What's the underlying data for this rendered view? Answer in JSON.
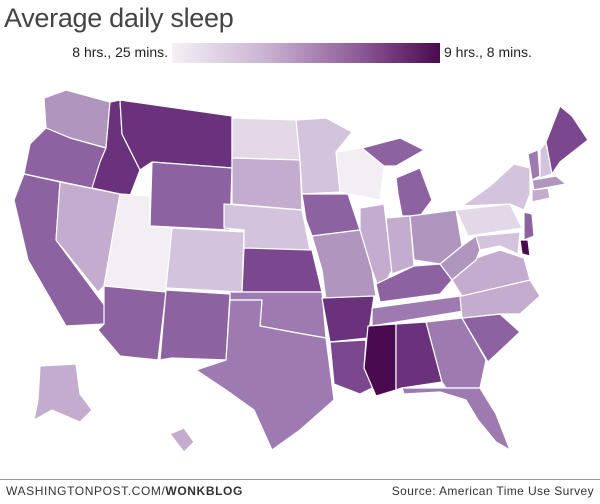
{
  "title": "Average daily sleep",
  "legend": {
    "min_label": "8 hrs., 25 mins.",
    "max_label": "9 hrs., 8 mins.",
    "min_color": "#f4f1f6",
    "max_color": "#4a0a4f"
  },
  "footer": {
    "credit_prefix": "WASHINGTONPOST.COM/",
    "credit_brand": "WONKBLOG",
    "source": "Source: American Time Use Survey"
  },
  "shades": {
    "0": "#f2eef4",
    "1": "#e3d8e8",
    "2": "#d4c3dc",
    "3": "#c3acce",
    "4": "#b096bf",
    "5": "#9d7bb0",
    "6": "#8c62a0",
    "7": "#7b4890",
    "8": "#6a317d",
    "9": "#4a0a4f"
  },
  "states": {
    "WA": 4,
    "OR": 6,
    "CA": 6,
    "ID": 8,
    "NV": 3,
    "MT": 8,
    "WY": 6,
    "UT": 0,
    "AZ": 6,
    "CO": 2,
    "NM": 6,
    "ND": 1,
    "SD": 3,
    "NE": 2,
    "KS": 7,
    "OK": 5,
    "TX": 5,
    "MN": 2,
    "IA": 6,
    "MO": 4,
    "AR": 8,
    "LA": 7,
    "WI": 0,
    "IL": 3,
    "MI": 6,
    "IN": 3,
    "OH": 4,
    "KY": 6,
    "TN": 5,
    "MS": 9,
    "AL": 8,
    "GA": 5,
    "FL": 5,
    "SC": 6,
    "NC": 3,
    "VA": 3,
    "WV": 4,
    "PA": 1,
    "NY": 2,
    "VT": 5,
    "NH": 2,
    "ME": 7,
    "MA": 4,
    "CT": 3,
    "NJ": 6,
    "DE": 9,
    "MD": 2,
    "AK": 3,
    "HI": 3
  }
}
